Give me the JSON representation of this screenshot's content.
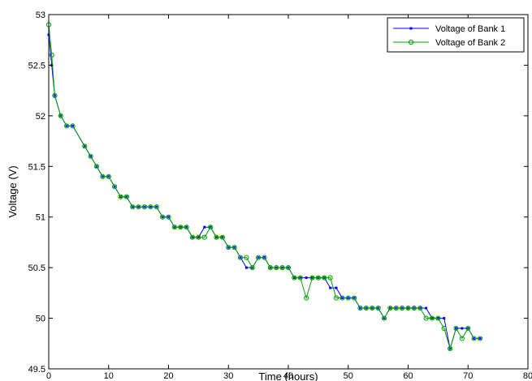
{
  "chart_data": {
    "type": "line",
    "xlabel": "Time (hours)",
    "ylabel": "Voltage (V)",
    "xlim": [
      0,
      80
    ],
    "ylim": [
      49.5,
      53
    ],
    "xticks": [
      "0",
      "10",
      "20",
      "30",
      "40",
      "50",
      "60",
      "70",
      "80"
    ],
    "yticks": [
      "49.5",
      "50",
      "50.5",
      "51",
      "51.5",
      "52",
      "52.5",
      "53"
    ],
    "grid": false,
    "legend_position": "top-right",
    "series": [
      {
        "name": "Voltage of Bank 1",
        "color": "#0000ff",
        "marker": "dot",
        "points": [
          [
            0,
            52.8
          ],
          [
            0.5,
            52.5
          ],
          [
            1,
            52.2
          ],
          [
            2,
            52.0
          ],
          [
            3,
            51.9
          ],
          [
            4,
            51.9
          ],
          [
            6,
            51.7
          ],
          [
            7,
            51.6
          ],
          [
            8,
            51.5
          ],
          [
            9,
            51.4
          ],
          [
            10,
            51.4
          ],
          [
            11,
            51.3
          ],
          [
            12,
            51.2
          ],
          [
            13,
            51.2
          ],
          [
            14,
            51.1
          ],
          [
            15,
            51.1
          ],
          [
            16,
            51.1
          ],
          [
            17,
            51.1
          ],
          [
            18,
            51.1
          ],
          [
            19,
            51.0
          ],
          [
            20,
            51.0
          ],
          [
            21,
            50.9
          ],
          [
            22,
            50.9
          ],
          [
            23,
            50.9
          ],
          [
            24,
            50.8
          ],
          [
            25,
            50.8
          ],
          [
            26,
            50.9
          ],
          [
            27,
            50.9
          ],
          [
            28,
            50.8
          ],
          [
            29,
            50.8
          ],
          [
            30,
            50.7
          ],
          [
            31,
            50.7
          ],
          [
            32,
            50.6
          ],
          [
            33,
            50.5
          ],
          [
            34,
            50.5
          ],
          [
            35,
            50.6
          ],
          [
            36,
            50.6
          ],
          [
            37,
            50.5
          ],
          [
            38,
            50.5
          ],
          [
            39,
            50.5
          ],
          [
            40,
            50.5
          ],
          [
            41,
            50.4
          ],
          [
            42,
            50.4
          ],
          [
            43,
            50.4
          ],
          [
            44,
            50.4
          ],
          [
            45,
            50.4
          ],
          [
            46,
            50.4
          ],
          [
            47,
            50.3
          ],
          [
            48,
            50.3
          ],
          [
            49,
            50.2
          ],
          [
            50,
            50.2
          ],
          [
            51,
            50.2
          ],
          [
            52,
            50.1
          ],
          [
            53,
            50.1
          ],
          [
            54,
            50.1
          ],
          [
            55,
            50.1
          ],
          [
            56,
            50.0
          ],
          [
            57,
            50.1
          ],
          [
            58,
            50.1
          ],
          [
            59,
            50.1
          ],
          [
            60,
            50.1
          ],
          [
            61,
            50.1
          ],
          [
            62,
            50.1
          ],
          [
            63,
            50.1
          ],
          [
            64,
            50.0
          ],
          [
            65,
            50.0
          ],
          [
            66,
            50.0
          ],
          [
            67,
            49.7
          ],
          [
            68,
            49.9
          ],
          [
            69,
            49.9
          ],
          [
            70,
            49.9
          ],
          [
            71,
            49.8
          ],
          [
            72,
            49.8
          ]
        ]
      },
      {
        "name": "Voltage of Bank 2",
        "color": "#00a000",
        "marker": "circle",
        "points": [
          [
            0,
            52.9
          ],
          [
            0.5,
            52.6
          ],
          [
            1,
            52.2
          ],
          [
            2,
            52.0
          ],
          [
            3,
            51.9
          ],
          [
            4,
            51.9
          ],
          [
            6,
            51.7
          ],
          [
            7,
            51.6
          ],
          [
            8,
            51.5
          ],
          [
            9,
            51.4
          ],
          [
            10,
            51.4
          ],
          [
            11,
            51.3
          ],
          [
            12,
            51.2
          ],
          [
            13,
            51.2
          ],
          [
            14,
            51.1
          ],
          [
            15,
            51.1
          ],
          [
            16,
            51.1
          ],
          [
            17,
            51.1
          ],
          [
            18,
            51.1
          ],
          [
            19,
            51.0
          ],
          [
            20,
            51.0
          ],
          [
            21,
            50.9
          ],
          [
            22,
            50.9
          ],
          [
            23,
            50.9
          ],
          [
            24,
            50.8
          ],
          [
            25,
            50.8
          ],
          [
            26,
            50.8
          ],
          [
            27,
            50.9
          ],
          [
            28,
            50.8
          ],
          [
            29,
            50.8
          ],
          [
            30,
            50.7
          ],
          [
            31,
            50.7
          ],
          [
            32,
            50.6
          ],
          [
            33,
            50.6
          ],
          [
            34,
            50.5
          ],
          [
            35,
            50.6
          ],
          [
            36,
            50.6
          ],
          [
            37,
            50.5
          ],
          [
            38,
            50.5
          ],
          [
            39,
            50.5
          ],
          [
            40,
            50.5
          ],
          [
            41,
            50.4
          ],
          [
            42,
            50.4
          ],
          [
            43,
            50.2
          ],
          [
            44,
            50.4
          ],
          [
            45,
            50.4
          ],
          [
            46,
            50.4
          ],
          [
            47,
            50.4
          ],
          [
            48,
            50.2
          ],
          [
            49,
            50.2
          ],
          [
            50,
            50.2
          ],
          [
            51,
            50.2
          ],
          [
            52,
            50.1
          ],
          [
            53,
            50.1
          ],
          [
            54,
            50.1
          ],
          [
            55,
            50.1
          ],
          [
            56,
            50.0
          ],
          [
            57,
            50.1
          ],
          [
            58,
            50.1
          ],
          [
            59,
            50.1
          ],
          [
            60,
            50.1
          ],
          [
            61,
            50.1
          ],
          [
            62,
            50.1
          ],
          [
            63,
            50.0
          ],
          [
            64,
            50.0
          ],
          [
            65,
            50.0
          ],
          [
            66,
            49.9
          ],
          [
            67,
            49.7
          ],
          [
            68,
            49.9
          ],
          [
            69,
            49.8
          ],
          [
            70,
            49.9
          ],
          [
            71,
            49.8
          ],
          [
            72,
            49.8
          ]
        ]
      }
    ]
  }
}
